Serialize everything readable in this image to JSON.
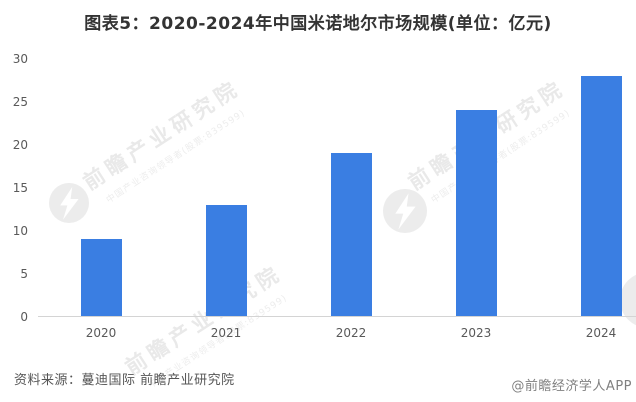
{
  "title": "图表5：2020-2024年中国米诺地尔市场规模(单位：亿元)",
  "chart_data": {
    "type": "bar",
    "title": "图表5：2020-2024年中国米诺地尔市场规模(单位：亿元)",
    "categories": [
      "2020",
      "2021",
      "2022",
      "2023",
      "2024"
    ],
    "values": [
      9,
      13,
      19,
      24,
      28
    ],
    "xlabel": "",
    "ylabel": "",
    "unit": "亿元",
    "ylim": [
      0,
      30
    ],
    "yticks": [
      0,
      5,
      10,
      15,
      20,
      25,
      30
    ],
    "grid": false,
    "legend": false,
    "bar_color": "#3a7ee2",
    "axis_color": "#d4d4d4",
    "tick_label_color": "#595959"
  },
  "watermark": {
    "brand_large": "前瞻产业研究院",
    "brand_small": "中国产业咨询领导者(股票:839599)",
    "color": "#e9e9e9"
  },
  "footer": {
    "source": "资料来源：蔓迪国际 前瞻产业研究院",
    "credit": "@前瞻经济学人APP"
  }
}
